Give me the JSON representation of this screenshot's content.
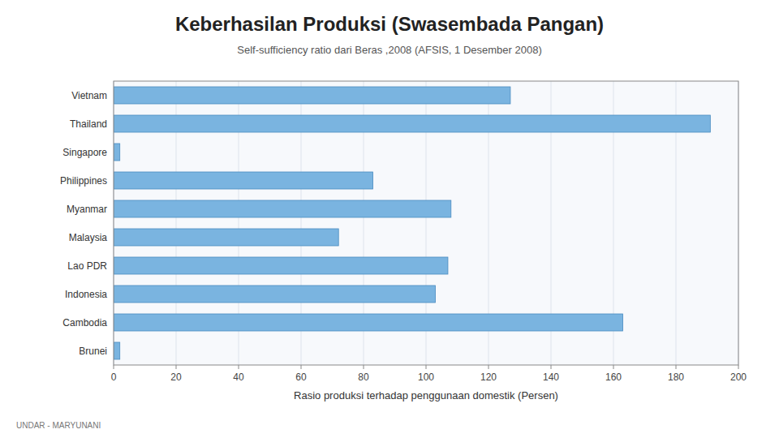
{
  "chart_data": {
    "type": "bar",
    "orientation": "horizontal",
    "title": "Keberhasilan Produksi  (Swasembada Pangan)",
    "subtitle": "Self-sufficiency ratio  dari Beras ,2008 (AFSIS, 1 Desember 2008)",
    "xlabel": "Rasio produksi terhadap penggunaan domestik (Persen)",
    "footer": "UNDAR - MARYUNANI",
    "categories": [
      "Vietnam",
      "Thailand",
      "Singapore",
      "Philippines",
      "Myanmar",
      "Malaysia",
      "Lao PDR",
      "Indonesia",
      "Cambodia",
      "Brunei"
    ],
    "values": [
      127,
      191,
      2,
      83,
      108,
      72,
      107,
      103,
      163,
      2
    ],
    "color": "#7ab4e0",
    "xlim": [
      0,
      200
    ],
    "xticks": [
      0,
      20,
      40,
      60,
      80,
      100,
      120,
      140,
      160,
      180,
      200
    ],
    "grid": true
  }
}
